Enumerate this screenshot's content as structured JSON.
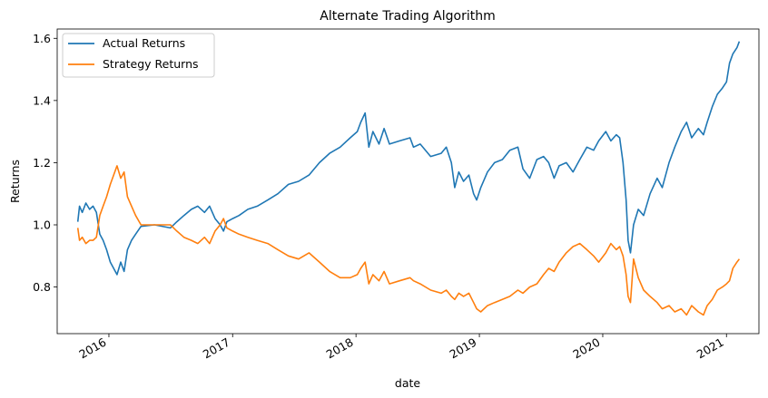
{
  "chart_data": {
    "type": "line",
    "title": "Alternate Trading Algorithm",
    "xlabel": "date",
    "ylabel": "Returns",
    "xlim": [
      "2015-08-01",
      "2021-04-07"
    ],
    "ylim": [
      0.65,
      1.63
    ],
    "x_ticks": [
      "2016",
      "2017",
      "2018",
      "2019",
      "2020",
      "2021"
    ],
    "y_ticks": [
      "0.8",
      "1.0",
      "1.2",
      "1.4",
      "1.6"
    ],
    "grid": false,
    "legend": "top-left",
    "series": [
      {
        "name": "Actual Returns",
        "color": "#1f77b4",
        "points": [
          [
            "2015-10-01",
            1.01
          ],
          [
            "2015-10-06",
            1.06
          ],
          [
            "2015-10-14",
            1.04
          ],
          [
            "2015-10-25",
            1.07
          ],
          [
            "2015-11-05",
            1.05
          ],
          [
            "2015-11-15",
            1.06
          ],
          [
            "2015-11-25",
            1.04
          ],
          [
            "2015-12-05",
            0.97
          ],
          [
            "2015-12-15",
            0.95
          ],
          [
            "2015-12-25",
            0.92
          ],
          [
            "2016-01-05",
            0.88
          ],
          [
            "2016-01-15",
            0.86
          ],
          [
            "2016-01-25",
            0.84
          ],
          [
            "2016-02-05",
            0.88
          ],
          [
            "2016-02-15",
            0.85
          ],
          [
            "2016-02-25",
            0.92
          ],
          [
            "2016-03-08",
            0.95
          ],
          [
            "2016-03-20",
            0.97
          ],
          [
            "2016-04-05",
            0.995
          ],
          [
            "2016-05-15",
            1.0
          ],
          [
            "2016-07-01",
            0.99
          ],
          [
            "2016-07-20",
            1.01
          ],
          [
            "2016-08-10",
            1.03
          ],
          [
            "2016-09-01",
            1.05
          ],
          [
            "2016-09-20",
            1.06
          ],
          [
            "2016-10-10",
            1.04
          ],
          [
            "2016-10-25",
            1.06
          ],
          [
            "2016-11-10",
            1.02
          ],
          [
            "2016-11-25",
            1.0
          ],
          [
            "2016-12-05",
            0.98
          ],
          [
            "2016-12-15",
            1.01
          ],
          [
            "2017-01-01",
            1.02
          ],
          [
            "2017-01-20",
            1.03
          ],
          [
            "2017-02-15",
            1.05
          ],
          [
            "2017-03-15",
            1.06
          ],
          [
            "2017-04-15",
            1.08
          ],
          [
            "2017-05-15",
            1.1
          ],
          [
            "2017-06-15",
            1.13
          ],
          [
            "2017-07-15",
            1.14
          ],
          [
            "2017-08-15",
            1.16
          ],
          [
            "2017-09-15",
            1.2
          ],
          [
            "2017-10-15",
            1.23
          ],
          [
            "2017-11-15",
            1.25
          ],
          [
            "2017-12-15",
            1.28
          ],
          [
            "2018-01-05",
            1.3
          ],
          [
            "2018-01-15",
            1.33
          ],
          [
            "2018-01-28",
            1.36
          ],
          [
            "2018-02-08",
            1.25
          ],
          [
            "2018-02-20",
            1.3
          ],
          [
            "2018-03-10",
            1.26
          ],
          [
            "2018-03-25",
            1.31
          ],
          [
            "2018-04-10",
            1.26
          ],
          [
            "2018-05-10",
            1.27
          ],
          [
            "2018-06-10",
            1.28
          ],
          [
            "2018-06-20",
            1.25
          ],
          [
            "2018-07-10",
            1.26
          ],
          [
            "2018-08-10",
            1.22
          ],
          [
            "2018-09-10",
            1.23
          ],
          [
            "2018-09-25",
            1.25
          ],
          [
            "2018-10-10",
            1.2
          ],
          [
            "2018-10-20",
            1.12
          ],
          [
            "2018-11-01",
            1.17
          ],
          [
            "2018-11-15",
            1.14
          ],
          [
            "2018-12-01",
            1.16
          ],
          [
            "2018-12-15",
            1.1
          ],
          [
            "2018-12-24",
            1.08
          ],
          [
            "2019-01-05",
            1.12
          ],
          [
            "2019-01-25",
            1.17
          ],
          [
            "2019-02-15",
            1.2
          ],
          [
            "2019-03-10",
            1.21
          ],
          [
            "2019-04-01",
            1.24
          ],
          [
            "2019-04-25",
            1.25
          ],
          [
            "2019-05-10",
            1.18
          ],
          [
            "2019-05-30",
            1.15
          ],
          [
            "2019-06-20",
            1.21
          ],
          [
            "2019-07-10",
            1.22
          ],
          [
            "2019-07-25",
            1.2
          ],
          [
            "2019-08-10",
            1.15
          ],
          [
            "2019-08-25",
            1.19
          ],
          [
            "2019-09-15",
            1.2
          ],
          [
            "2019-10-05",
            1.17
          ],
          [
            "2019-10-25",
            1.21
          ],
          [
            "2019-11-15",
            1.25
          ],
          [
            "2019-12-05",
            1.24
          ],
          [
            "2019-12-20",
            1.27
          ],
          [
            "2020-01-10",
            1.3
          ],
          [
            "2020-01-25",
            1.27
          ],
          [
            "2020-02-10",
            1.29
          ],
          [
            "2020-02-20",
            1.28
          ],
          [
            "2020-03-01",
            1.2
          ],
          [
            "2020-03-10",
            1.08
          ],
          [
            "2020-03-16",
            0.95
          ],
          [
            "2020-03-23",
            0.91
          ],
          [
            "2020-04-01",
            1.0
          ],
          [
            "2020-04-15",
            1.05
          ],
          [
            "2020-05-01",
            1.03
          ],
          [
            "2020-05-20",
            1.1
          ],
          [
            "2020-06-10",
            1.15
          ],
          [
            "2020-06-25",
            1.12
          ],
          [
            "2020-07-15",
            1.2
          ],
          [
            "2020-08-01",
            1.25
          ],
          [
            "2020-08-20",
            1.3
          ],
          [
            "2020-09-05",
            1.33
          ],
          [
            "2020-09-20",
            1.28
          ],
          [
            "2020-10-10",
            1.31
          ],
          [
            "2020-10-25",
            1.29
          ],
          [
            "2020-11-05",
            1.33
          ],
          [
            "2020-11-20",
            1.38
          ],
          [
            "2020-12-05",
            1.42
          ],
          [
            "2020-12-20",
            1.44
          ],
          [
            "2021-01-01",
            1.46
          ],
          [
            "2021-01-10",
            1.52
          ],
          [
            "2021-01-20",
            1.55
          ],
          [
            "2021-02-01",
            1.57
          ],
          [
            "2021-02-08",
            1.59
          ]
        ]
      },
      {
        "name": "Strategy Returns",
        "color": "#ff7f0e",
        "points": [
          [
            "2015-10-01",
            0.99
          ],
          [
            "2015-10-06",
            0.95
          ],
          [
            "2015-10-14",
            0.96
          ],
          [
            "2015-10-25",
            0.94
          ],
          [
            "2015-11-05",
            0.95
          ],
          [
            "2015-11-15",
            0.95
          ],
          [
            "2015-11-25",
            0.96
          ],
          [
            "2015-12-05",
            1.03
          ],
          [
            "2015-12-15",
            1.06
          ],
          [
            "2015-12-25",
            1.09
          ],
          [
            "2016-01-05",
            1.13
          ],
          [
            "2016-01-15",
            1.16
          ],
          [
            "2016-01-25",
            1.19
          ],
          [
            "2016-02-05",
            1.15
          ],
          [
            "2016-02-15",
            1.17
          ],
          [
            "2016-02-25",
            1.09
          ],
          [
            "2016-03-08",
            1.06
          ],
          [
            "2016-03-20",
            1.03
          ],
          [
            "2016-04-05",
            1.0
          ],
          [
            "2016-05-15",
            1.0
          ],
          [
            "2016-07-01",
            1.0
          ],
          [
            "2016-07-20",
            0.98
          ],
          [
            "2016-08-10",
            0.96
          ],
          [
            "2016-09-01",
            0.95
          ],
          [
            "2016-09-20",
            0.94
          ],
          [
            "2016-10-10",
            0.96
          ],
          [
            "2016-10-25",
            0.94
          ],
          [
            "2016-11-10",
            0.98
          ],
          [
            "2016-11-25",
            1.0
          ],
          [
            "2016-12-05",
            1.02
          ],
          [
            "2016-12-15",
            0.99
          ],
          [
            "2017-01-01",
            0.98
          ],
          [
            "2017-01-20",
            0.97
          ],
          [
            "2017-02-15",
            0.96
          ],
          [
            "2017-03-15",
            0.95
          ],
          [
            "2017-04-15",
            0.94
          ],
          [
            "2017-05-15",
            0.92
          ],
          [
            "2017-06-15",
            0.9
          ],
          [
            "2017-07-15",
            0.89
          ],
          [
            "2017-08-15",
            0.91
          ],
          [
            "2017-09-15",
            0.88
          ],
          [
            "2017-10-15",
            0.85
          ],
          [
            "2017-11-15",
            0.83
          ],
          [
            "2017-12-15",
            0.83
          ],
          [
            "2018-01-05",
            0.84
          ],
          [
            "2018-01-15",
            0.86
          ],
          [
            "2018-01-28",
            0.88
          ],
          [
            "2018-02-08",
            0.81
          ],
          [
            "2018-02-20",
            0.84
          ],
          [
            "2018-03-10",
            0.82
          ],
          [
            "2018-03-25",
            0.85
          ],
          [
            "2018-04-10",
            0.81
          ],
          [
            "2018-05-10",
            0.82
          ],
          [
            "2018-06-10",
            0.83
          ],
          [
            "2018-06-20",
            0.82
          ],
          [
            "2018-07-10",
            0.81
          ],
          [
            "2018-08-10",
            0.79
          ],
          [
            "2018-09-10",
            0.78
          ],
          [
            "2018-09-25",
            0.79
          ],
          [
            "2018-10-10",
            0.77
          ],
          [
            "2018-10-20",
            0.76
          ],
          [
            "2018-11-01",
            0.78
          ],
          [
            "2018-11-15",
            0.77
          ],
          [
            "2018-12-01",
            0.78
          ],
          [
            "2018-12-15",
            0.75
          ],
          [
            "2018-12-24",
            0.73
          ],
          [
            "2019-01-05",
            0.72
          ],
          [
            "2019-01-25",
            0.74
          ],
          [
            "2019-02-15",
            0.75
          ],
          [
            "2019-03-10",
            0.76
          ],
          [
            "2019-04-01",
            0.77
          ],
          [
            "2019-04-25",
            0.79
          ],
          [
            "2019-05-10",
            0.78
          ],
          [
            "2019-05-30",
            0.8
          ],
          [
            "2019-06-20",
            0.81
          ],
          [
            "2019-07-10",
            0.84
          ],
          [
            "2019-07-25",
            0.86
          ],
          [
            "2019-08-10",
            0.85
          ],
          [
            "2019-08-25",
            0.88
          ],
          [
            "2019-09-15",
            0.91
          ],
          [
            "2019-10-05",
            0.93
          ],
          [
            "2019-10-25",
            0.94
          ],
          [
            "2019-11-15",
            0.92
          ],
          [
            "2019-12-05",
            0.9
          ],
          [
            "2019-12-20",
            0.88
          ],
          [
            "2020-01-10",
            0.91
          ],
          [
            "2020-01-25",
            0.94
          ],
          [
            "2020-02-10",
            0.92
          ],
          [
            "2020-02-20",
            0.93
          ],
          [
            "2020-03-01",
            0.9
          ],
          [
            "2020-03-10",
            0.84
          ],
          [
            "2020-03-16",
            0.77
          ],
          [
            "2020-03-23",
            0.75
          ],
          [
            "2020-04-01",
            0.89
          ],
          [
            "2020-04-15",
            0.83
          ],
          [
            "2020-05-01",
            0.79
          ],
          [
            "2020-05-20",
            0.77
          ],
          [
            "2020-06-10",
            0.75
          ],
          [
            "2020-06-25",
            0.73
          ],
          [
            "2020-07-15",
            0.74
          ],
          [
            "2020-08-01",
            0.72
          ],
          [
            "2020-08-20",
            0.73
          ],
          [
            "2020-09-05",
            0.71
          ],
          [
            "2020-09-20",
            0.74
          ],
          [
            "2020-10-10",
            0.72
          ],
          [
            "2020-10-25",
            0.71
          ],
          [
            "2020-11-05",
            0.74
          ],
          [
            "2020-11-20",
            0.76
          ],
          [
            "2020-12-05",
            0.79
          ],
          [
            "2020-12-20",
            0.8
          ],
          [
            "2021-01-01",
            0.81
          ],
          [
            "2021-01-10",
            0.82
          ],
          [
            "2021-01-20",
            0.86
          ],
          [
            "2021-02-01",
            0.88
          ],
          [
            "2021-02-08",
            0.89
          ]
        ]
      }
    ]
  }
}
